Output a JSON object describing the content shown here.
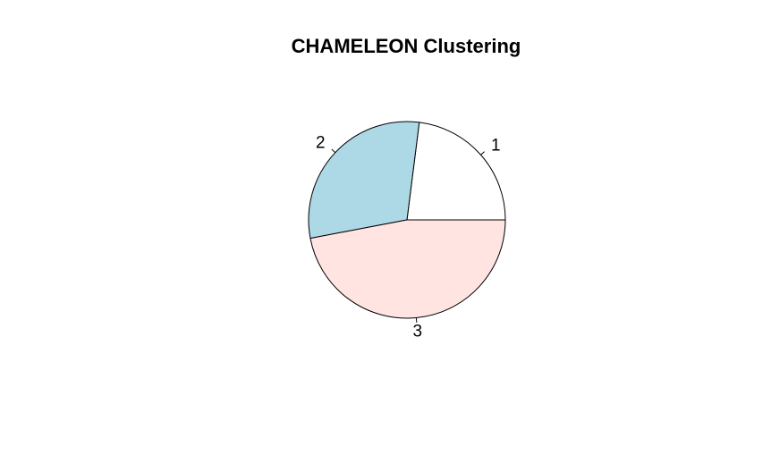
{
  "chart_data": {
    "type": "pie",
    "title": "CHAMELEON Clustering",
    "labels": [
      "1",
      "2",
      "3"
    ],
    "values": [
      23,
      30,
      47
    ],
    "colors": [
      "#FFFFFF",
      "#ADD8E6",
      "#FFE4E1"
    ],
    "border_color": "#000000",
    "start_angle_deg": 0,
    "direction": "counterclockwise"
  }
}
